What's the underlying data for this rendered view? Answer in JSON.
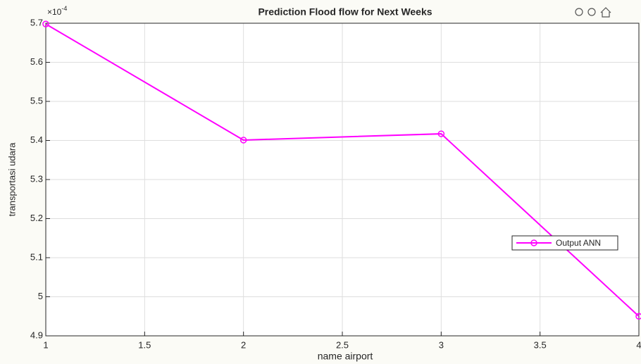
{
  "chart_data": {
    "type": "line",
    "title": "Prediction Flood flow for Next Weeks",
    "xlabel": "name airport",
    "ylabel": "transportasi udara",
    "y_exponent_base": "×10",
    "y_exponent_power": "-4",
    "x": [
      1,
      2,
      3,
      4
    ],
    "series": [
      {
        "name": "Output ANN",
        "color": "#ff00ff",
        "values": [
          5.698,
          5.401,
          5.417,
          4.95
        ]
      }
    ],
    "xlim": [
      1,
      4
    ],
    "xticks": [
      1,
      1.5,
      2,
      2.5,
      3,
      3.5,
      4
    ],
    "ylim": [
      4.9,
      5.7
    ],
    "yticks": [
      4.9,
      5,
      5.1,
      5.2,
      5.3,
      5.4,
      5.5,
      5.6,
      5.7
    ],
    "grid": true,
    "legend": "east"
  }
}
